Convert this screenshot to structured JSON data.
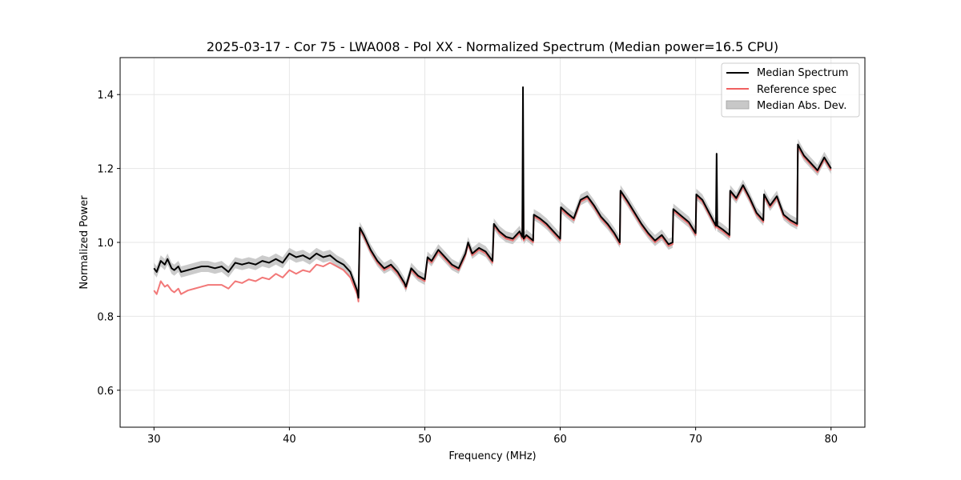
{
  "chart_data": {
    "type": "line",
    "title": "2025-03-17 - Cor 75 - LWA008 - Pol XX - Normalized Spectrum (Median power=16.5 CPU)",
    "xlabel": "Frequency (MHz)",
    "ylabel": "Normalized Power",
    "xlim": [
      27.5,
      82.5
    ],
    "ylim": [
      0.5,
      1.5
    ],
    "xticks": [
      30,
      40,
      50,
      60,
      70,
      80
    ],
    "yticks": [
      0.6,
      0.8,
      1.0,
      1.2,
      1.4
    ],
    "xtick_labels": [
      "30",
      "40",
      "50",
      "60",
      "70",
      "80"
    ],
    "ytick_labels": [
      "0.6",
      "0.8",
      "1.0",
      "1.2",
      "1.4"
    ],
    "grid": true,
    "legend_position": "top-right",
    "legend": [
      "Median Spectrum",
      "Reference spec",
      "Median Abs. Dev."
    ],
    "colors": {
      "median": "#000000",
      "reference": "#f06060",
      "mad_fill": "#c8c8c8",
      "grid": "#e6e6e6"
    },
    "series": [
      {
        "name": "Median Spectrum",
        "x": [
          30.0,
          30.2,
          30.5,
          30.8,
          31.0,
          31.3,
          31.5,
          31.8,
          32.0,
          32.5,
          33.0,
          33.5,
          34.0,
          34.5,
          35.0,
          35.5,
          36.0,
          36.5,
          37.0,
          37.5,
          38.0,
          38.5,
          39.0,
          39.5,
          40.0,
          40.5,
          41.0,
          41.5,
          42.0,
          42.5,
          43.0,
          43.5,
          44.0,
          44.5,
          45.0,
          45.1,
          45.2,
          45.5,
          46.0,
          46.5,
          47.0,
          47.5,
          48.0,
          48.5,
          48.6,
          49.0,
          49.5,
          50.0,
          50.2,
          50.5,
          51.0,
          51.5,
          52.0,
          52.5,
          53.0,
          53.2,
          53.5,
          54.0,
          54.5,
          55.0,
          55.1,
          55.5,
          56.0,
          56.5,
          57.0,
          57.2,
          57.25,
          57.3,
          57.5,
          58.0,
          58.05,
          58.5,
          59.0,
          59.5,
          60.0,
          60.05,
          60.5,
          61.0,
          61.5,
          62.0,
          62.5,
          63.0,
          63.5,
          64.0,
          64.4,
          64.45,
          65.0,
          65.5,
          66.0,
          66.5,
          67.0,
          67.5,
          68.0,
          68.3,
          68.35,
          69.0,
          69.5,
          70.0,
          70.05,
          70.5,
          71.0,
          71.5,
          71.55,
          71.6,
          72.0,
          72.5,
          72.55,
          73.0,
          73.5,
          74.0,
          74.5,
          75.0,
          75.05,
          75.5,
          76.0,
          76.5,
          77.0,
          77.5,
          77.55,
          78.0,
          78.5,
          79.0,
          79.5,
          80.0
        ],
        "values": [
          0.93,
          0.92,
          0.95,
          0.94,
          0.955,
          0.93,
          0.925,
          0.935,
          0.92,
          0.925,
          0.93,
          0.935,
          0.935,
          0.93,
          0.935,
          0.92,
          0.945,
          0.94,
          0.945,
          0.94,
          0.95,
          0.945,
          0.955,
          0.945,
          0.97,
          0.96,
          0.965,
          0.955,
          0.97,
          0.96,
          0.965,
          0.95,
          0.94,
          0.92,
          0.87,
          0.85,
          1.04,
          1.02,
          0.98,
          0.95,
          0.93,
          0.94,
          0.92,
          0.89,
          0.88,
          0.93,
          0.91,
          0.9,
          0.96,
          0.95,
          0.98,
          0.96,
          0.94,
          0.93,
          0.97,
          1.0,
          0.97,
          0.985,
          0.975,
          0.95,
          1.05,
          1.03,
          1.015,
          1.01,
          1.03,
          1.015,
          1.42,
          1.01,
          1.02,
          1.005,
          1.075,
          1.065,
          1.05,
          1.03,
          1.01,
          1.095,
          1.08,
          1.065,
          1.115,
          1.125,
          1.1,
          1.07,
          1.05,
          1.025,
          1.0,
          1.14,
          1.11,
          1.08,
          1.05,
          1.025,
          1.005,
          1.02,
          0.995,
          1.0,
          1.09,
          1.07,
          1.055,
          1.025,
          1.13,
          1.115,
          1.08,
          1.045,
          1.24,
          1.045,
          1.035,
          1.02,
          1.14,
          1.12,
          1.155,
          1.12,
          1.08,
          1.06,
          1.13,
          1.1,
          1.125,
          1.075,
          1.06,
          1.05,
          1.265,
          1.235,
          1.215,
          1.195,
          1.23,
          1.2
        ]
      },
      {
        "name": "Reference spec",
        "x": [
          30.0,
          30.2,
          30.5,
          30.8,
          31.0,
          31.3,
          31.5,
          31.8,
          32.0,
          32.5,
          33.0,
          33.5,
          34.0,
          34.5,
          35.0,
          35.5,
          36.0,
          36.5,
          37.0,
          37.5,
          38.0,
          38.5,
          39.0,
          39.5,
          40.0,
          40.5,
          41.0,
          41.5,
          42.0,
          42.5,
          43.0,
          43.5,
          44.0,
          44.5,
          45.0,
          45.1,
          45.2,
          45.5,
          46.0,
          46.5,
          47.0,
          47.5,
          48.0,
          48.5,
          48.6,
          49.0,
          49.5,
          50.0,
          50.2,
          50.5,
          51.0,
          51.5,
          52.0,
          52.5,
          53.0,
          53.2,
          53.5,
          54.0,
          54.5,
          55.0,
          55.1,
          55.5,
          56.0,
          56.5,
          57.0,
          57.2,
          57.25,
          57.3,
          57.5,
          58.0,
          58.05,
          58.5,
          59.0,
          59.5,
          60.0,
          60.05,
          60.5,
          61.0,
          61.5,
          62.0,
          62.5,
          63.0,
          63.5,
          64.0,
          64.4,
          64.45,
          65.0,
          65.5,
          66.0,
          66.5,
          67.0,
          67.5,
          68.0,
          68.3,
          68.35,
          69.0,
          69.5,
          70.0,
          70.05,
          70.5,
          71.0,
          71.5,
          71.55,
          71.6,
          72.0,
          72.5,
          72.55,
          73.0,
          73.5,
          74.0,
          74.5,
          75.0,
          75.05,
          75.5,
          76.0,
          76.5,
          77.0,
          77.5,
          77.55,
          78.0,
          78.5,
          79.0,
          79.5,
          80.0
        ],
        "values": [
          0.87,
          0.86,
          0.895,
          0.88,
          0.885,
          0.87,
          0.865,
          0.875,
          0.86,
          0.87,
          0.875,
          0.88,
          0.885,
          0.885,
          0.885,
          0.875,
          0.895,
          0.89,
          0.9,
          0.895,
          0.905,
          0.9,
          0.915,
          0.905,
          0.925,
          0.915,
          0.925,
          0.92,
          0.94,
          0.935,
          0.945,
          0.935,
          0.925,
          0.905,
          0.86,
          0.84,
          1.035,
          1.015,
          0.975,
          0.945,
          0.925,
          0.935,
          0.915,
          0.885,
          0.875,
          0.925,
          0.905,
          0.895,
          0.955,
          0.945,
          0.975,
          0.955,
          0.935,
          0.925,
          0.965,
          0.995,
          0.965,
          0.98,
          0.97,
          0.945,
          1.045,
          1.025,
          1.01,
          1.005,
          1.025,
          1.01,
          1.25,
          1.005,
          1.015,
          1.0,
          1.07,
          1.06,
          1.045,
          1.025,
          1.005,
          1.09,
          1.075,
          1.06,
          1.11,
          1.12,
          1.095,
          1.065,
          1.045,
          1.02,
          0.995,
          1.135,
          1.105,
          1.075,
          1.045,
          1.02,
          1.0,
          1.015,
          0.99,
          0.995,
          1.085,
          1.065,
          1.05,
          1.02,
          1.125,
          1.11,
          1.075,
          1.04,
          1.05,
          1.04,
          1.03,
          1.015,
          1.135,
          1.115,
          1.15,
          1.115,
          1.075,
          1.055,
          1.125,
          1.095,
          1.12,
          1.07,
          1.055,
          1.045,
          1.26,
          1.23,
          1.21,
          1.19,
          1.225,
          1.195
        ]
      }
    ],
    "mad_band_halfwidth": 0.015
  }
}
